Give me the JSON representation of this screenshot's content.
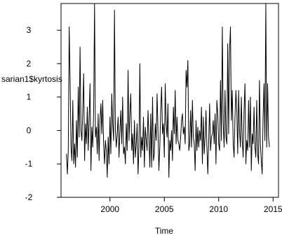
{
  "chart_data": {
    "type": "line",
    "xlabel": "Time",
    "ylabel": "sarian1$kyrtosis",
    "xlim": [
      1995.5,
      2015.5
    ],
    "ylim": [
      -2.0,
      3.8
    ],
    "x_ticks": [
      2000,
      2005,
      2010,
      2015
    ],
    "y_ticks": [
      -2,
      -1,
      0,
      1,
      2,
      3
    ],
    "grid": false,
    "start": 1996.0,
    "frequency": 12,
    "series": [
      {
        "values": [
          -0.7,
          -1.3,
          -0.6,
          3.1,
          1.5,
          -0.5,
          -0.9,
          0.9,
          -1.0,
          -0.4,
          -1.1,
          0.3,
          -0.8,
          1.3,
          -0.2,
          2.5,
          0.0,
          -0.3,
          0.6,
          1.7,
          -0.9,
          0.2,
          -0.4,
          0.7,
          -0.6,
          0.4,
          1.4,
          -1.2,
          0.1,
          -0.5,
          0.6,
          3.8,
          -0.2,
          0.1,
          -0.7,
          0.5,
          -0.9,
          0.3,
          0.8,
          -0.1,
          0.9,
          -0.4,
          -1.0,
          -0.3,
          -0.6,
          -1.4,
          -0.2,
          -1.0,
          0.4,
          -0.7,
          1.1,
          0.2,
          -0.3,
          3.6,
          0.0,
          -0.5,
          -0.1,
          0.4,
          -0.8,
          0.0,
          0.6,
          -0.4,
          1.0,
          -0.7,
          -0.5,
          -1.0,
          0.2,
          -0.6,
          1.8,
          -0.3,
          0.5,
          1.1,
          -0.6,
          -0.1,
          -1.0,
          0.3,
          -0.8,
          -0.4,
          0.2,
          -1.3,
          -0.5,
          2.0,
          -0.8,
          -0.2,
          -0.6,
          0.4,
          -1.1,
          0.1,
          -0.3,
          -0.6,
          0.6,
          -0.2,
          -1.1,
          0.5,
          -1.1,
          1.0,
          -0.9,
          -0.7,
          0.2,
          -0.3,
          1.1,
          0.0,
          -1.2,
          -0.5,
          0.6,
          1.3,
          -0.1,
          0.2,
          -0.8,
          1.4,
          0.2,
          -0.2,
          0.8,
          -1.4,
          -0.3,
          -0.6,
          0.0,
          -0.9,
          0.7,
          -0.1,
          1.2,
          -0.4,
          0.4,
          -0.3,
          -0.4,
          -0.6,
          -0.2,
          0.3,
          0.5,
          -0.1,
          0.1,
          -0.4,
          1.8,
          1.3,
          2.1,
          -0.6,
          -0.4,
          0.6,
          -0.5,
          0.9,
          -0.2,
          -0.4,
          -1.2,
          0.3,
          -0.6,
          0.1,
          -0.5,
          0.0,
          -0.3,
          0.7,
          -1.0,
          0.4,
          -0.7,
          -0.2,
          0.6,
          -0.5,
          -1.3,
          -0.3,
          0.8,
          -0.6,
          -0.2,
          -0.1,
          0.3,
          -0.4,
          0.5,
          -1.0,
          0.9,
          0.5,
          -0.4,
          -0.6,
          1.5,
          -0.3,
          3.1,
          0.2,
          -0.5,
          1.2,
          -0.2,
          -0.4,
          2.6,
          -0.1,
          2.4,
          3.1,
          0.3,
          1.2,
          -0.4,
          -0.8,
          0.4,
          1.2,
          0.6,
          -0.7,
          1.2,
          0.0,
          -0.5,
          1.0,
          -0.3,
          -0.8,
          0.6,
          1.4,
          -1.0,
          -0.3,
          -0.6,
          0.9,
          -0.5,
          1.0,
          -1.2,
          -0.1,
          -0.4,
          0.7,
          -0.5,
          -0.8,
          0.9,
          -0.7,
          -1.0,
          1.5,
          -0.4,
          -0.9,
          -1.3,
          0.4,
          1.4,
          -0.3,
          3.8,
          -0.5,
          1.4,
          -0.2,
          -0.5
        ]
      }
    ]
  }
}
